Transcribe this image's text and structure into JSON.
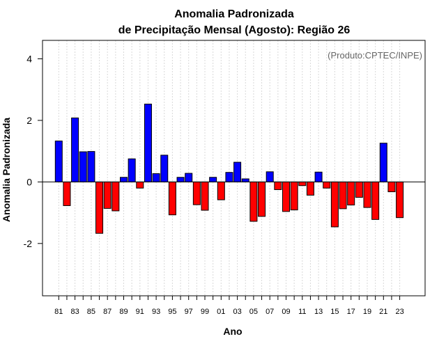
{
  "chart_data": {
    "type": "bar",
    "title_line1": "Anomalia Padronizada",
    "title_line2": "de Precipitação Mensal (Agosto): Região 26",
    "xlabel": "Ano",
    "ylabel": "Anomalia Padronizada",
    "credit": "(Produto:CPTEC/INPE)",
    "ylim": [
      -3.7,
      4.6
    ],
    "yticks": [
      -2,
      0,
      2,
      4
    ],
    "ytick_labels": [
      "-2",
      "0",
      "2",
      "4"
    ],
    "positive_color": "#0000ff",
    "negative_color": "#ff0000",
    "categories": [
      "81",
      "82",
      "83",
      "84",
      "85",
      "86",
      "87",
      "88",
      "89",
      "90",
      "91",
      "92",
      "93",
      "94",
      "95",
      "96",
      "97",
      "98",
      "99",
      "00",
      "01",
      "02",
      "03",
      "04",
      "05",
      "06",
      "07",
      "08",
      "09",
      "10",
      "11",
      "12",
      "13",
      "14",
      "15",
      "16",
      "17",
      "18",
      "19",
      "20",
      "21",
      "22",
      "23"
    ],
    "tick_labels": [
      "81",
      "83",
      "85",
      "87",
      "89",
      "91",
      "93",
      "95",
      "97",
      "99",
      "01",
      "03",
      "05",
      "07",
      "09",
      "11",
      "13",
      "15",
      "17",
      "19",
      "21",
      "23"
    ],
    "values": [
      1.33,
      -0.77,
      2.08,
      0.98,
      0.99,
      -1.67,
      -0.86,
      -0.94,
      0.15,
      0.75,
      -0.2,
      2.53,
      0.27,
      0.87,
      -1.07,
      0.15,
      0.28,
      -0.74,
      -0.92,
      0.15,
      -0.58,
      0.31,
      0.64,
      0.1,
      -1.28,
      -1.12,
      0.33,
      -0.25,
      -0.96,
      -0.91,
      -0.12,
      -0.43,
      0.32,
      -0.2,
      -1.46,
      -0.87,
      -0.75,
      -0.5,
      -0.83,
      -1.22,
      1.26,
      -0.32,
      -1.16
    ]
  }
}
